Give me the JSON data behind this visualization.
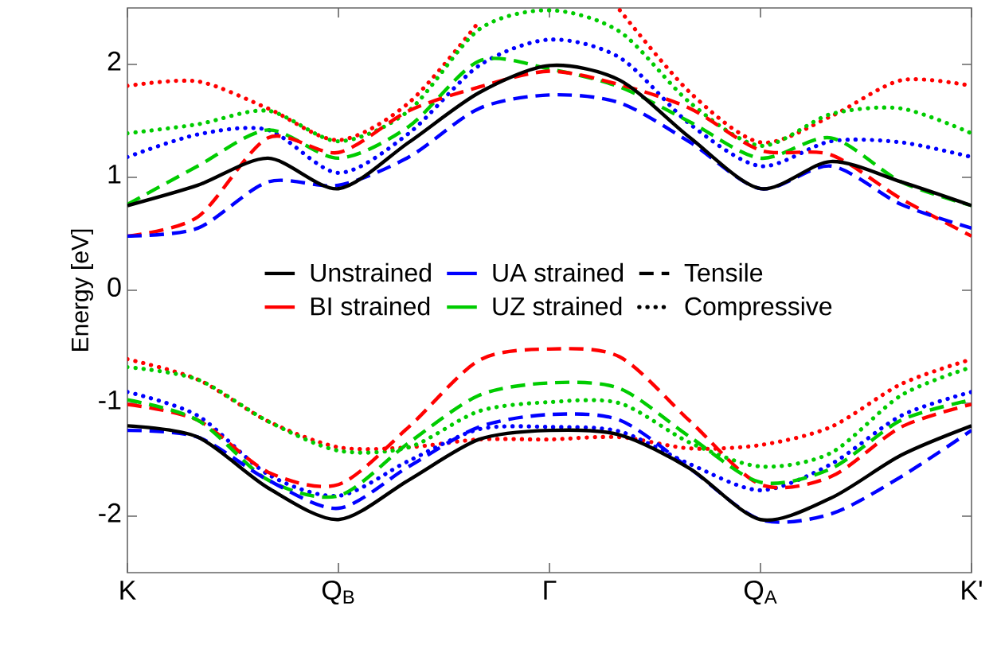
{
  "chart_data": {
    "type": "line",
    "ylabel": "Energy [eV]",
    "categories": [
      "K",
      null,
      null,
      "Q$_{B}$",
      null,
      null,
      "Γ",
      null,
      null,
      "Q$_{A}$",
      null,
      null,
      "K'"
    ],
    "ylim": [
      -2.5,
      2.5
    ],
    "yticks": [
      -2,
      -1,
      0,
      1,
      2
    ],
    "legend": "center",
    "grid": false,
    "series": [
      {
        "name": "Unstrained",
        "color": "#000000",
        "line_style": "solid",
        "values": [
          null,
          null,
          null,
          null,
          null,
          null,
          null,
          null,
          null,
          null,
          null,
          null,
          null
        ]
      },
      {
        "name": "UA strained",
        "color": "#0000ff",
        "line_style": "solid",
        "values": [
          null,
          null,
          null,
          null,
          null,
          null,
          null,
          null,
          null,
          null,
          null,
          null,
          null
        ]
      },
      {
        "name": "Tensile",
        "color": "#000000",
        "line_style": "dashed",
        "values": [
          null,
          null,
          null,
          null,
          null,
          null,
          null,
          null,
          null,
          null,
          null,
          null,
          null
        ]
      },
      {
        "name": "BI strained",
        "color": "#ff0000",
        "line_style": "solid",
        "values": [
          null,
          null,
          null,
          null,
          null,
          null,
          null,
          null,
          null,
          null,
          null,
          null,
          null
        ]
      },
      {
        "name": "UZ strained",
        "color": "#00cc00",
        "line_style": "solid",
        "values": [
          null,
          null,
          null,
          null,
          null,
          null,
          null,
          null,
          null,
          null,
          null,
          null,
          null
        ]
      },
      {
        "name": "Compressive",
        "color": "#000000",
        "line_style": "dotted",
        "values": [
          null,
          null,
          null,
          null,
          null,
          null,
          null,
          null,
          null,
          null,
          null,
          null,
          null
        ]
      },
      {
        "color": "#ff0000",
        "line_style": "dotted",
        "values": [
          1.81,
          1.85,
          1.61,
          1.33,
          1.66,
          2.38,
          null,
          2.48,
          1.75,
          1.31,
          1.54,
          1.86,
          1.81
        ]
      },
      {
        "color": "#00cc00",
        "line_style": "dotted",
        "values": [
          1.39,
          1.47,
          1.59,
          1.32,
          1.59,
          2.31,
          2.48,
          2.29,
          1.66,
          1.28,
          1.56,
          1.61,
          1.39
        ]
      },
      {
        "color": "#0000ff",
        "line_style": "dotted",
        "values": [
          1.18,
          1.38,
          1.42,
          1.04,
          1.39,
          1.99,
          2.22,
          2.06,
          1.47,
          1.1,
          1.32,
          1.31,
          1.18
        ]
      },
      {
        "color": "#00cc00",
        "line_style": "dashed",
        "values": [
          0.76,
          1.1,
          1.42,
          1.17,
          1.45,
          2.03,
          1.96,
          1.8,
          1.49,
          1.17,
          1.35,
          0.96,
          0.75
        ]
      },
      {
        "color": "#ff0000",
        "line_style": "dashed",
        "values": [
          0.48,
          0.65,
          1.35,
          1.22,
          1.59,
          1.8,
          1.94,
          1.82,
          1.61,
          1.24,
          1.2,
          0.81,
          0.48
        ]
      },
      {
        "color": "#0000ff",
        "line_style": "dashed",
        "values": [
          0.48,
          0.55,
          0.96,
          0.93,
          1.18,
          1.61,
          1.73,
          1.66,
          1.31,
          0.9,
          1.1,
          0.76,
          0.55
        ]
      },
      {
        "color": "#000000",
        "line_style": "solid",
        "values": [
          0.75,
          0.93,
          1.17,
          0.9,
          1.31,
          1.75,
          1.99,
          1.86,
          1.35,
          0.9,
          1.14,
          0.96,
          0.75
        ]
      },
      {
        "color": "#ff0000",
        "line_style": "dotted",
        "values": [
          -0.61,
          -0.79,
          -1.16,
          -1.39,
          -1.39,
          -1.32,
          -1.32,
          -1.3,
          -1.4,
          -1.37,
          -1.21,
          -0.83,
          -0.61
        ]
      },
      {
        "color": "#00cc00",
        "line_style": "dotted",
        "values": [
          -0.68,
          -0.79,
          -1.16,
          -1.42,
          -1.39,
          -1.07,
          -0.99,
          -1.0,
          -1.35,
          -1.56,
          -1.44,
          -0.93,
          -0.68
        ]
      },
      {
        "color": "#0000ff",
        "line_style": "dotted",
        "values": [
          -0.9,
          -1.11,
          -1.63,
          -1.82,
          -1.51,
          -1.23,
          -1.21,
          -1.25,
          -1.54,
          -1.77,
          -1.54,
          -1.11,
          -0.9
        ]
      },
      {
        "color": "#ff0000",
        "line_style": "dashed",
        "values": [
          -1.01,
          -1.15,
          -1.61,
          -1.72,
          -1.21,
          -0.62,
          -0.52,
          -0.59,
          -1.16,
          -1.72,
          -1.65,
          -1.21,
          -1.01
        ]
      },
      {
        "color": "#00cc00",
        "line_style": "dashed",
        "values": [
          -0.97,
          -1.15,
          -1.68,
          -1.82,
          -1.35,
          -0.93,
          -0.82,
          -0.87,
          -1.3,
          -1.7,
          -1.58,
          -1.15,
          -0.97
        ]
      },
      {
        "color": "#0000ff",
        "line_style": "dashed",
        "values": [
          -1.24,
          -1.3,
          -1.68,
          -1.93,
          -1.56,
          -1.21,
          -1.1,
          -1.15,
          -1.58,
          -2.03,
          -1.98,
          -1.65,
          -1.24
        ]
      },
      {
        "color": "#000000",
        "line_style": "solid",
        "values": [
          -1.2,
          -1.3,
          -1.75,
          -2.03,
          -1.68,
          -1.32,
          -1.24,
          -1.28,
          -1.58,
          -2.03,
          -1.84,
          -1.46,
          -1.2
        ]
      }
    ]
  }
}
